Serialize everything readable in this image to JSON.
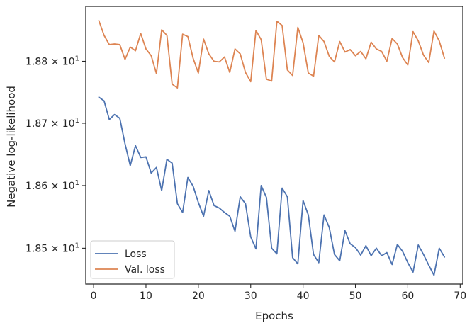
{
  "chart_data": {
    "type": "line",
    "xlabel": "Epochs",
    "ylabel": "Negative log-likelihood",
    "xlim": [
      -1.5,
      70.5
    ],
    "ylim": [
      18.443,
      18.889
    ],
    "y_scale": "log",
    "x_ticks": [
      0,
      10,
      20,
      30,
      40,
      50,
      60,
      70
    ],
    "x_tick_labels": [
      "0",
      "10",
      "20",
      "30",
      "40",
      "50",
      "60",
      "70"
    ],
    "y_ticks": [
      18.5,
      18.6,
      18.7,
      18.8
    ],
    "y_tick_labels": [
      {
        "mantissa": "1.85",
        "times": "×",
        "base": "10",
        "exp": "1"
      },
      {
        "mantissa": "1.86",
        "times": "×",
        "base": "10",
        "exp": "1"
      },
      {
        "mantissa": "1.87",
        "times": "×",
        "base": "10",
        "exp": "1"
      },
      {
        "mantissa": "1.88",
        "times": "×",
        "base": "10",
        "exp": "1"
      }
    ],
    "grid": false,
    "legend_position": "lower-left",
    "x": [
      1,
      2,
      3,
      4,
      5,
      6,
      7,
      8,
      9,
      10,
      11,
      12,
      13,
      14,
      15,
      16,
      17,
      18,
      19,
      20,
      21,
      22,
      23,
      24,
      25,
      26,
      27,
      28,
      29,
      30,
      31,
      32,
      33,
      34,
      35,
      36,
      37,
      38,
      39,
      40,
      41,
      42,
      43,
      44,
      45,
      46,
      47,
      48,
      49,
      50,
      51,
      52,
      53,
      54,
      55,
      56,
      57,
      58,
      59,
      60,
      61,
      62,
      63,
      64,
      65,
      66,
      67
    ],
    "series": [
      {
        "name": "Loss",
        "color": "#4c72b0",
        "values": [
          18.742,
          18.736,
          18.706,
          18.714,
          18.708,
          18.667,
          18.632,
          18.664,
          18.645,
          18.646,
          18.62,
          18.629,
          18.592,
          18.642,
          18.636,
          18.571,
          18.557,
          18.613,
          18.599,
          18.573,
          18.551,
          18.592,
          18.568,
          18.564,
          18.557,
          18.551,
          18.527,
          18.582,
          18.571,
          18.518,
          18.499,
          18.6,
          18.581,
          18.5,
          18.491,
          18.596,
          18.582,
          18.485,
          18.475,
          18.576,
          18.553,
          18.49,
          18.477,
          18.553,
          18.533,
          18.49,
          18.48,
          18.528,
          18.507,
          18.501,
          18.489,
          18.504,
          18.488,
          18.5,
          18.488,
          18.493,
          18.474,
          18.506,
          18.495,
          18.477,
          18.462,
          18.505,
          18.49,
          18.473,
          18.457,
          18.5,
          18.486
        ]
      },
      {
        "name": "Val. loss",
        "color": "#dd8452",
        "values": [
          18.866,
          18.842,
          18.827,
          18.828,
          18.827,
          18.803,
          18.823,
          18.817,
          18.845,
          18.82,
          18.809,
          18.78,
          18.851,
          18.842,
          18.763,
          18.757,
          18.844,
          18.84,
          18.805,
          18.781,
          18.836,
          18.812,
          18.8,
          18.799,
          18.807,
          18.782,
          18.82,
          18.812,
          18.782,
          18.767,
          18.85,
          18.835,
          18.771,
          18.768,
          18.865,
          18.858,
          18.786,
          18.777,
          18.855,
          18.83,
          18.781,
          18.776,
          18.842,
          18.832,
          18.808,
          18.799,
          18.832,
          18.815,
          18.819,
          18.809,
          18.816,
          18.804,
          18.831,
          18.82,
          18.816,
          18.8,
          18.837,
          18.828,
          18.806,
          18.794,
          18.848,
          18.833,
          18.81,
          18.798,
          18.849,
          18.833,
          18.805
        ]
      }
    ]
  }
}
